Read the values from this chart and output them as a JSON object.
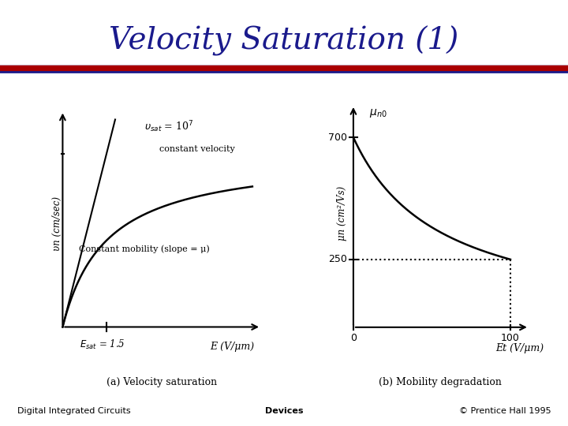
{
  "title": "Velocity Saturation (1)",
  "title_color": "#1a1a8c",
  "title_fontsize": 28,
  "bg_color": "#ffffff",
  "line_dark": "#1a1a8c",
  "line_red": "#aa0000",
  "footer_left": "Digital Integrated Circuits",
  "footer_center": "Devices",
  "footer_right": "© Prentice Hall 1995",
  "caption_a": "(a) Velocity saturation",
  "caption_b": "(b) Mobility degradation",
  "ylabel_a": "υn (cm/sec)",
  "xlabel_a": "E (V/μm)",
  "ylabel_b": "μn (cm²/Vs)",
  "xlabel_b": "Et (V/μm)",
  "annotation_vsat": "= 10",
  "annotation_const_vel": "constant velocity",
  "annotation_const_mob": "Constant mobility (slope = μ)",
  "annotation_esat_label": "= 1.5",
  "annotation_mun0": "μn0",
  "ytick_b_700": "700",
  "ytick_b_250": "250",
  "xtick_b_0": "0",
  "xtick_b_100": "100"
}
